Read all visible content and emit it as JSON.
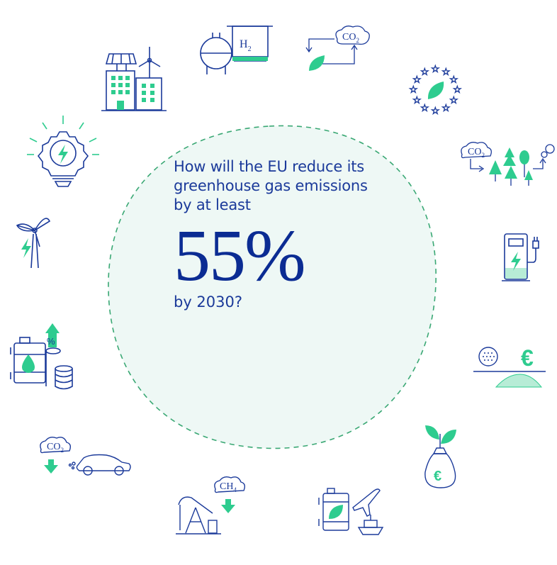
{
  "center": {
    "question_line1": "How will the EU reduce its",
    "question_line2": "greenhouse gas emissions",
    "question_line3": "by at least",
    "percent": "55%",
    "question_end": "by 2030?"
  },
  "icons": {
    "h2_label": "H",
    "h2_sub": "2",
    "co2_label": "CO",
    "co2_sub": "2",
    "ch4_label": "CH",
    "ch4_sub": "4",
    "percent_badge": "%",
    "euro_sign": "€"
  },
  "colors": {
    "navy": "#1b3a9a",
    "green": "#2ecc8f",
    "circle_fill": "#eef8f5",
    "circle_stroke": "#3aa874"
  }
}
